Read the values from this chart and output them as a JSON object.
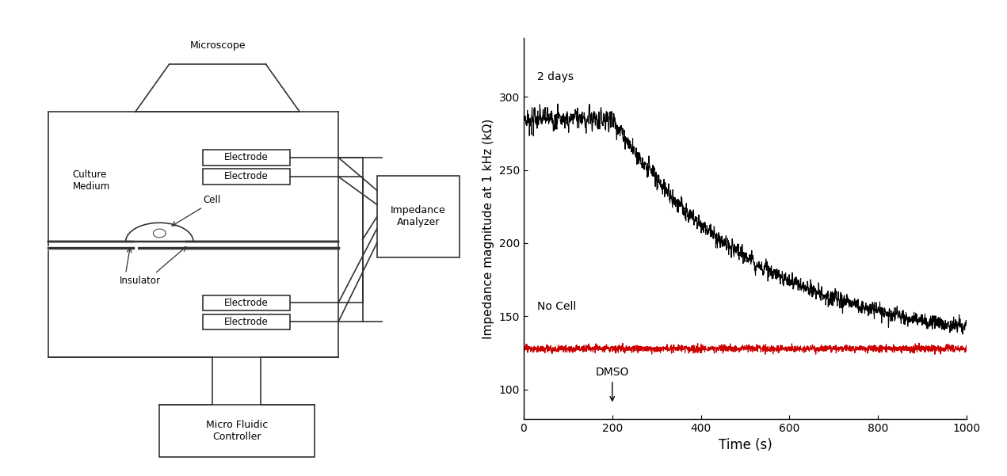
{
  "fig_width": 12.71,
  "fig_height": 6.01,
  "bg_color": "#ffffff",
  "left_panel": {
    "microscope_label": "Microscope",
    "culture_medium_label": "Culture\nMedium",
    "cell_label": "Cell",
    "insulator_label": "Insulator",
    "electrode_label": "Electrode",
    "impedance_label": "Impedance\nAnalyzer",
    "microfluidic_label": "Micro Fluidic\nController"
  },
  "right_panel": {
    "xlabel": "Time (s)",
    "ylabel": "Impedance magnitude at 1 kHz (kΩ)",
    "xlim": [
      0,
      1000
    ],
    "ylim": [
      80,
      340
    ],
    "yticks": [
      100,
      150,
      200,
      250,
      300
    ],
    "xticks": [
      0,
      200,
      400,
      600,
      800,
      1000
    ],
    "label_2days": "2 days",
    "label_nocell": "No Cell",
    "label_dmso": "DMSO",
    "dmso_x": 200,
    "cell_line_color": "#000000",
    "nocell_line_color": "#cc0000",
    "nocell_level": 128,
    "cell_start_y": 285,
    "cell_end_y": 130
  }
}
